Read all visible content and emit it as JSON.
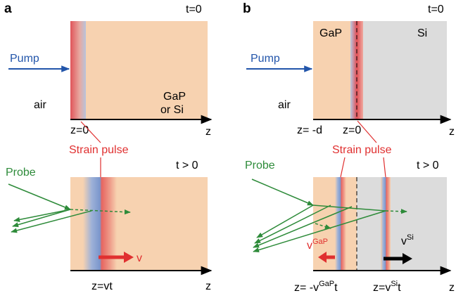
{
  "panels": [
    {
      "label": "a",
      "top_time": "t=0",
      "pump": "Pump",
      "air": "air",
      "material": [
        "GaP",
        "or Si"
      ],
      "top_z0": "z=0",
      "top_axis": "z",
      "strain_pulse": "Strain pulse",
      "probe": "Probe",
      "bottom_time": "t > 0",
      "velocity": "v",
      "bottom_position": "z=vt",
      "bottom_axis": "z"
    },
    {
      "label": "b",
      "top_time": "t=0",
      "layer_left": "GaP",
      "layer_right": "Si",
      "pump": "Pump",
      "air": "air",
      "top_zd": "z= -d",
      "top_z0": "z=0",
      "top_axis": "z",
      "strain_pulse": "Strain pulse",
      "probe": "Probe",
      "bottom_time": "t > 0",
      "velocity_left": {
        "base": "v",
        "sup": "GaP"
      },
      "velocity_right": {
        "base": "v",
        "sup": "Si"
      },
      "position_left": {
        "prefix": "z= -v",
        "sup": "GaP",
        "suffix": "t"
      },
      "position_right": {
        "prefix": "z=v",
        "sup": "Si",
        "suffix": "t"
      },
      "bottom_axis": "z"
    }
  ]
}
